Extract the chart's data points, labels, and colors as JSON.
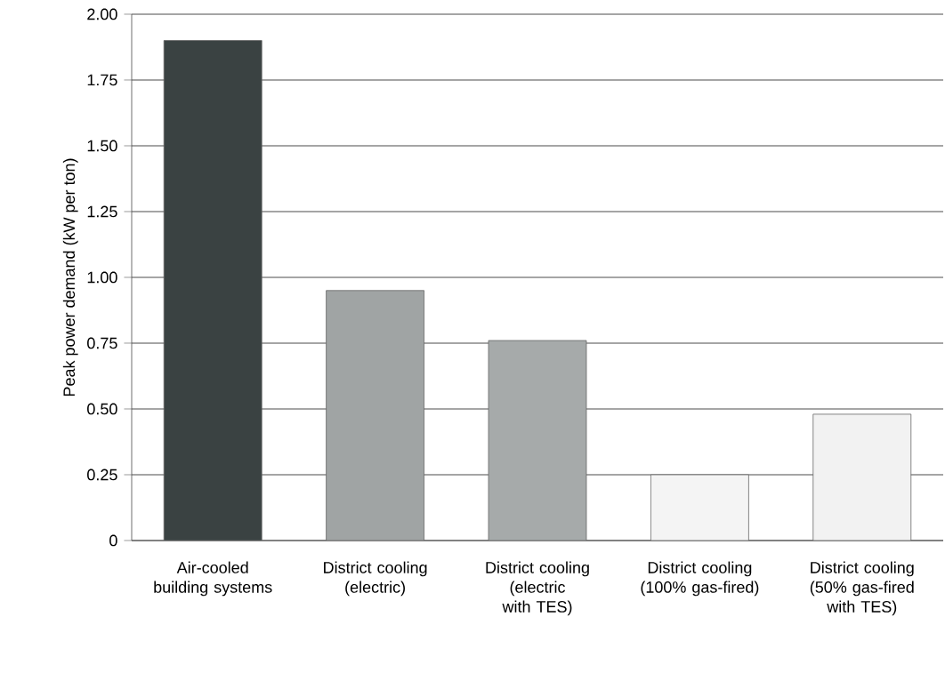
{
  "chart_data": {
    "type": "bar",
    "ylabel": "Peak power demand (kW per ton)",
    "categories": [
      "Air-cooled building systems",
      "District cooling (electric)",
      "District cooling (electric with TES)",
      "District cooling (100% gas-fired)",
      "District cooling (50% gas-fired with TES)"
    ],
    "values": [
      1.9,
      0.95,
      0.76,
      0.25,
      0.48
    ],
    "colors": [
      "#3a4242",
      "#a0a4a4",
      "#a6aaaa",
      "#f4f4f4",
      "#f2f2f2"
    ],
    "ylim": [
      0,
      2
    ],
    "yticks": [
      {
        "value": 0,
        "label": "0"
      },
      {
        "value": 0.25,
        "label": "0.25"
      },
      {
        "value": 0.5,
        "label": "0.50"
      },
      {
        "value": 0.75,
        "label": "0.75"
      },
      {
        "value": 1,
        "label": "1.00"
      },
      {
        "value": 1.25,
        "label": "1.25"
      },
      {
        "value": 1.5,
        "label": "1.50"
      },
      {
        "value": 1.75,
        "label": "1.75"
      },
      {
        "value": 2,
        "label": "2.00"
      }
    ],
    "grid": "y"
  }
}
